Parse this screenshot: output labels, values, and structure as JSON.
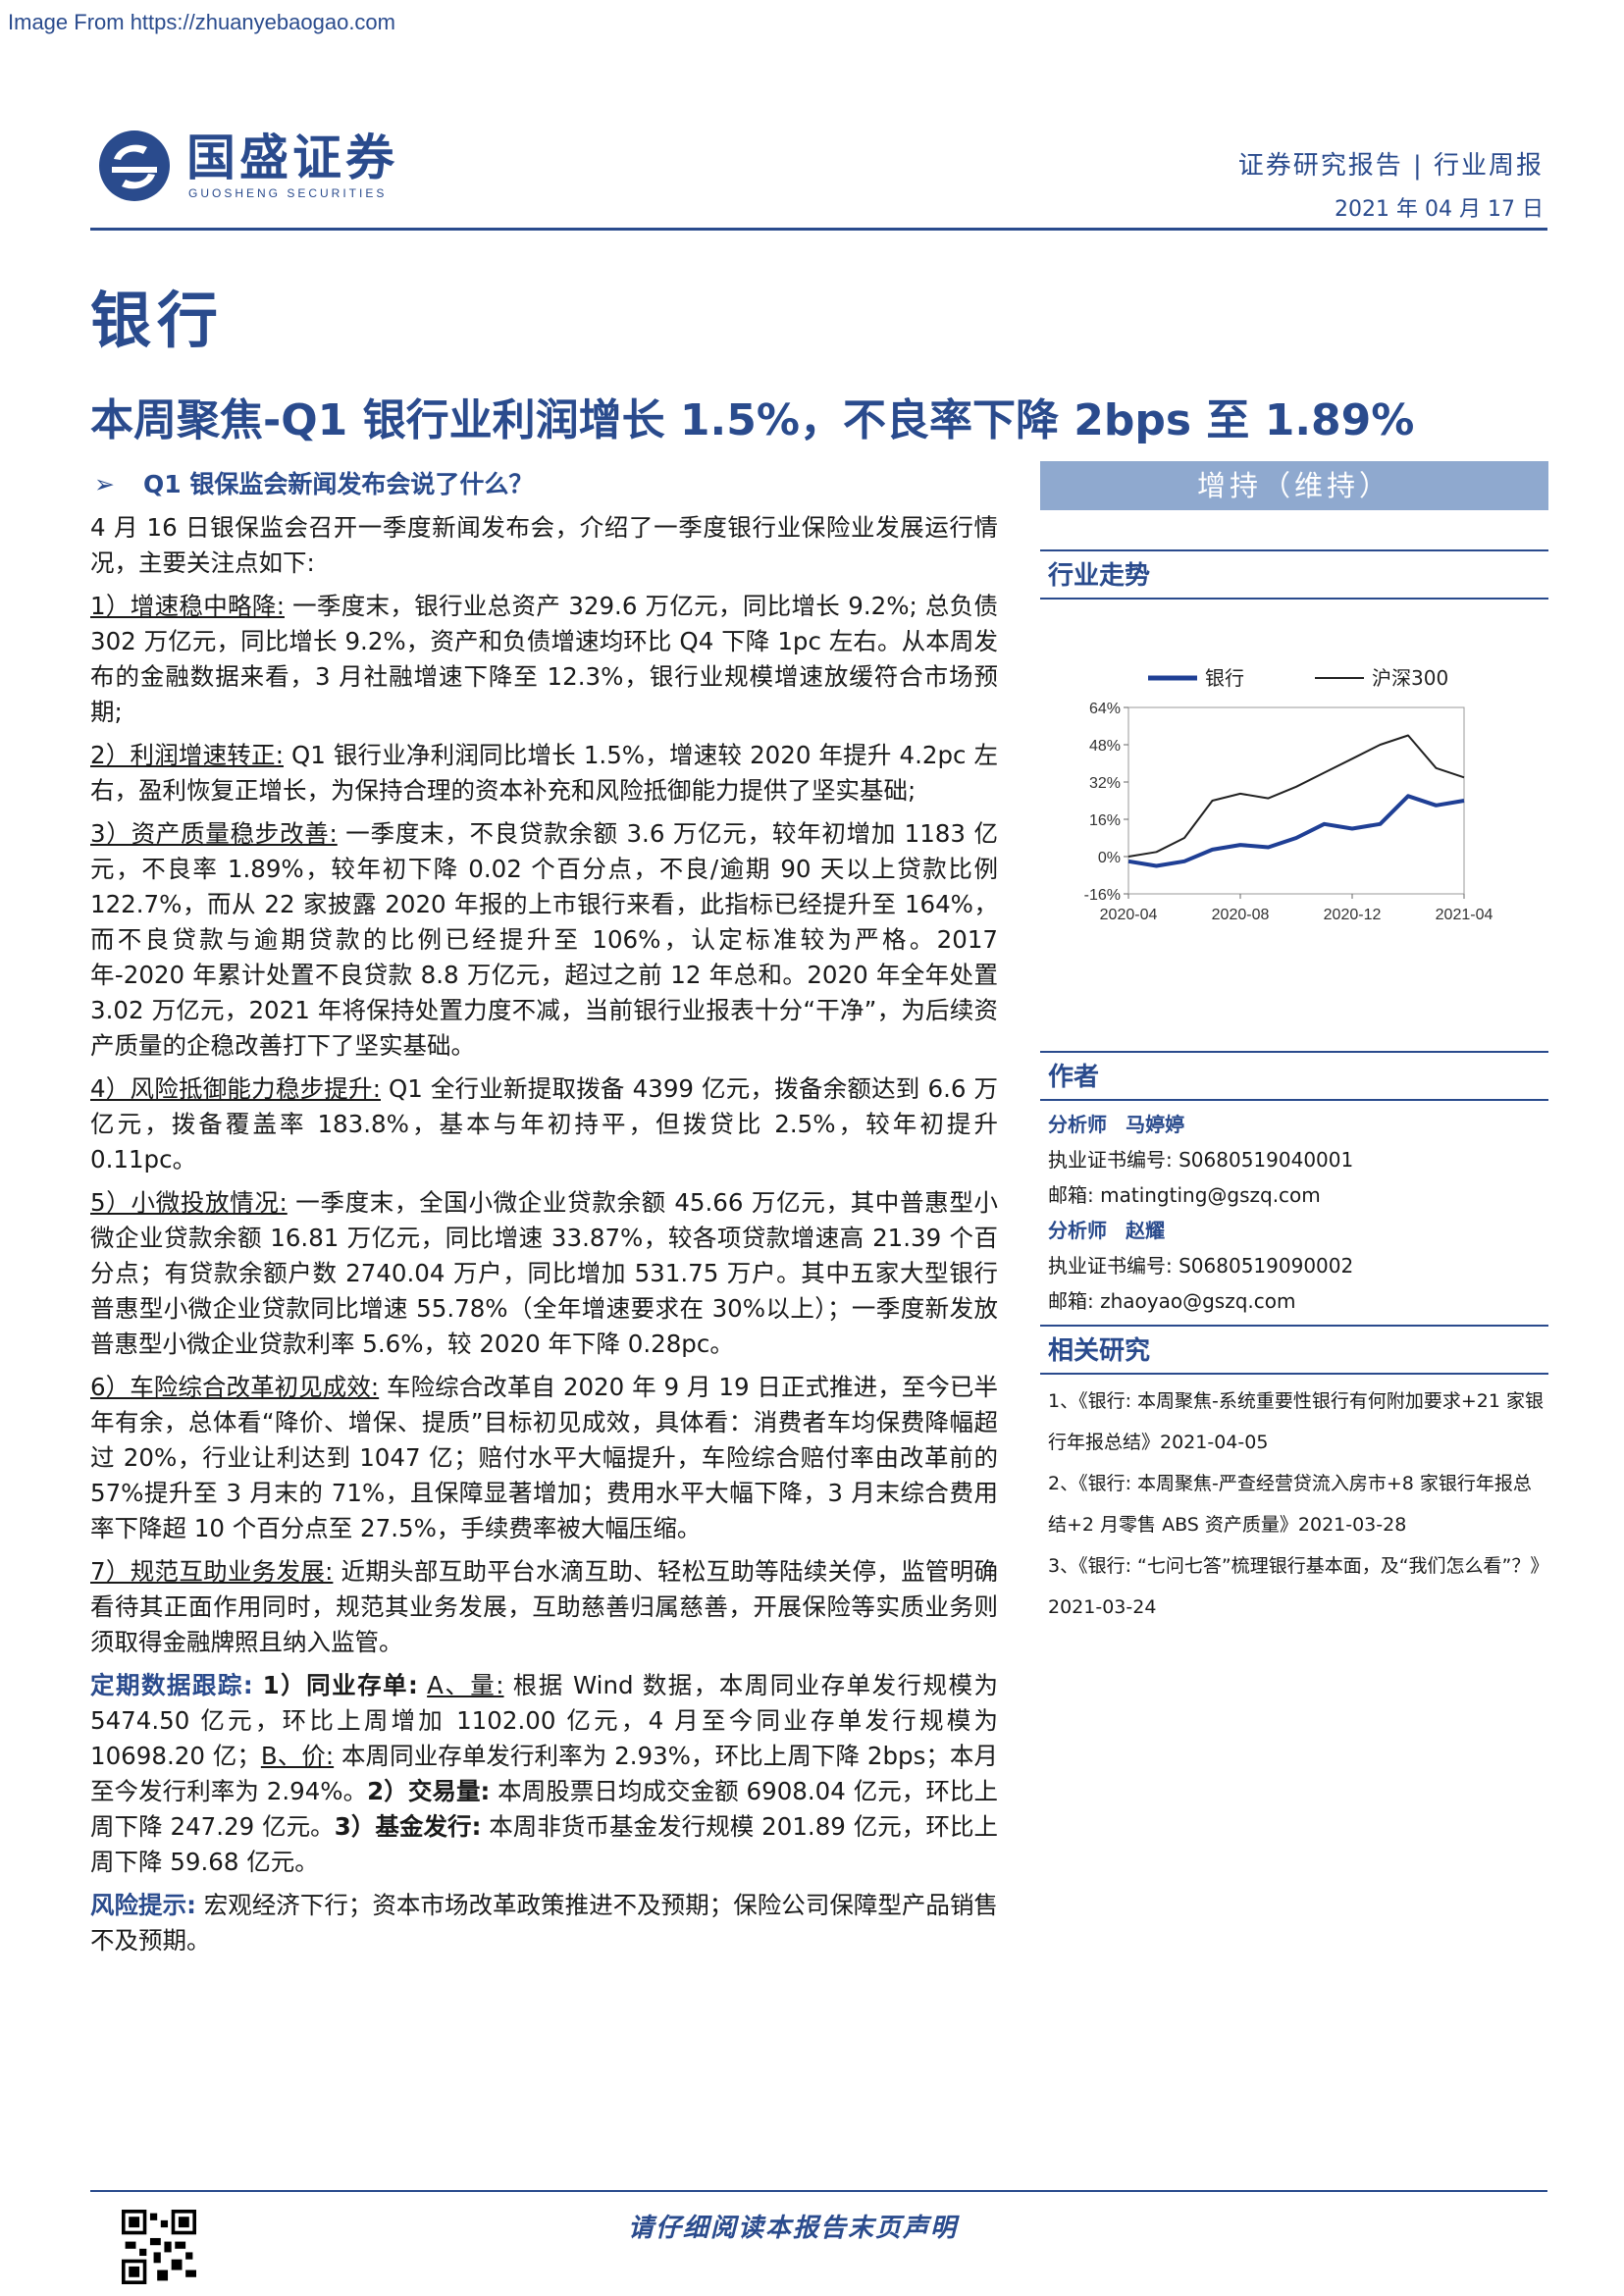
{
  "source_banner": "Image From https://zhuanyebaogao.com",
  "brand": {
    "name": "国盛证券",
    "name_en": "GUOSHENG SECURITIES",
    "color": "#2a4b8d"
  },
  "header": {
    "report_type": "证券研究报告 | 行业周报",
    "date": "2021 年 04 月 17 日"
  },
  "sector": "银行",
  "headline": "本周聚焦-Q1 银行业利润增长 1.5%，不良率下降 2bps 至 1.89%",
  "main": {
    "section_title": "Q1 银保监会新闻发布会说了什么？",
    "intro": "4 月 16 日银保监会召开一季度新闻发布会，介绍了一季度银行业保险业发展运行情况，主要关注点如下:",
    "points": [
      {
        "label": "1）增速稳中略降:",
        "text": " 一季度末，银行业总资产 329.6 万亿元，同比增长 9.2%; 总负债 302 万亿元，同比增长 9.2%，资产和负债增速均环比 Q4 下降 1pc 左右。从本周发布的金融数据来看，3 月社融增速下降至 12.3%，银行业规模增速放缓符合市场预期;"
      },
      {
        "label": "2）利润增速转正:",
        "text": " Q1 银行业净利润同比增长 1.5%，增速较 2020 年提升 4.2pc 左右，盈利恢复正增长，为保持合理的资本补充和风险抵御能力提供了坚实基础;"
      },
      {
        "label": "3）资产质量稳步改善:",
        "text": " 一季度末，不良贷款余额 3.6 万亿元，较年初增加 1183 亿元，不良率 1.89%，较年初下降 0.02 个百分点，不良/逾期 90 天以上贷款比例 122.7%，而从 22 家披露 2020 年报的上市银行来看，此指标已经提升至 164%，而不良贷款与逾期贷款的比例已经提升至 106%，认定标准较为严格。2017 年-2020 年累计处置不良贷款 8.8 万亿元，超过之前 12 年总和。2020 年全年处置 3.02 万亿元，2021 年将保持处置力度不减，当前银行业报表十分“干净”，为后续资产质量的企稳改善打下了坚实基础。"
      },
      {
        "label": "4）风险抵御能力稳步提升:",
        "text": " Q1 全行业新提取拨备 4399 亿元，拨备余额达到 6.6 万亿元，拨备覆盖率 183.8%，基本与年初持平，但拨贷比 2.5%，较年初提升 0.11pc。"
      },
      {
        "label": "5）小微投放情况:",
        "text": " 一季度末，全国小微企业贷款余额 45.66 万亿元，其中普惠型小微企业贷款余额 16.81 万亿元，同比增速 33.87%，较各项贷款增速高 21.39 个百分点；有贷款余额户数 2740.04 万户，同比增加 531.75 万户。其中五家大型银行普惠型小微企业贷款同比增速 55.78%（全年增速要求在 30%以上）；一季度新发放普惠型小微企业贷款利率 5.6%，较 2020 年下降 0.28pc。"
      },
      {
        "label": "6）车险综合改革初见成效:",
        "text": " 车险综合改革自 2020 年 9 月 19 日正式推进，至今已半年有余，总体看“降价、增保、提质”目标初见成效，具体看：消费者车均保费降幅超过 20%，行业让利达到 1047 亿；赔付水平大幅提升，车险综合赔付率由改革前的 57%提升至 3 月末的 71%，且保障显著增加；费用水平大幅下降，3 月末综合费用率下降超 10 个百分点至 27.5%，手续费率被大幅压缩。"
      },
      {
        "label": "7）规范互助业务发展:",
        "text": " 近期头部互助平台水滴互助、轻松互助等陆续关停，监管明确看待其正面作用同时，规范其业务发展，互助慈善归属慈善，开展保险等实质业务则须取得金融牌照且纳入监管。"
      }
    ],
    "tracking": {
      "label": "定期数据跟踪:",
      "p1_label": " 1）同业存单:",
      "a_label": "A、量:",
      "a_text": " 根据 Wind 数据，本周同业存单发行规模为 5474.50 亿元，环比上周增加 1102.00 亿元，4 月至今同业存单发行规模为 10698.20 亿；",
      "b_label": "B、价:",
      "b_text": " 本周同业存单发行利率为 2.93%，环比上周下降 2bps；本月至今发行利率为 2.94%。",
      "p2_label": "2）交易量:",
      "p2_text": " 本周股票日均成交金额 6908.04 亿元，环比上周下降 247.29 亿元。",
      "p3_label": "3）基金发行:",
      "p3_text": " 本周非货币基金发行规模 201.89 亿元，环比上周下降 59.68 亿元。"
    },
    "risk": {
      "label": "风险提示:",
      "text": " 宏观经济下行；资本市场改革政策推进不及预期；保险公司保障型产品销售不及预期。"
    }
  },
  "sidebar": {
    "rating": "增持（维持）",
    "trend_title": "行业走势",
    "authors_title": "作者",
    "authors": [
      {
        "role": "分析师",
        "name": "马婷婷",
        "cert_label": "执业证书编号:",
        "cert": "S0680519040001",
        "email_label": "邮箱:",
        "email": "matingting@gszq.com"
      },
      {
        "role": "分析师",
        "name": "赵耀",
        "cert_label": "执业证书编号:",
        "cert": "S0680519090002",
        "email_label": "邮箱:",
        "email": "zhaoyao@gszq.com"
      }
    ],
    "research_title": "相关研究",
    "research": [
      "1、《银行: 本周聚焦-系统重要性银行有何附加要求+21 家银行年报总结》2021-04-05",
      "2、《银行: 本周聚焦-严查经营贷流入房市+8 家银行年报总结+2 月零售 ABS 资产质量》2021-03-28",
      "3、《银行: “七问七答”梳理银行基本面，及“我们怎么看”？》2021-03-24"
    ]
  },
  "footer": {
    "note": "请仔细阅读本报告末页声明"
  },
  "chart_data": {
    "type": "line",
    "title": "",
    "xlabel": "",
    "ylabel": "",
    "ylim": [
      -16,
      64
    ],
    "y_ticks": [
      "64%",
      "48%",
      "32%",
      "16%",
      "0%",
      "-16%"
    ],
    "x_ticks": [
      "2020-04",
      "2020-08",
      "2020-12",
      "2021-04"
    ],
    "legend_position": "top",
    "series": [
      {
        "name": "银行",
        "color": "#1f3f95",
        "points": [
          [
            "2020-04",
            -2
          ],
          [
            "2020-05",
            -4
          ],
          [
            "2020-06",
            -2
          ],
          [
            "2020-07",
            3
          ],
          [
            "2020-08",
            5
          ],
          [
            "2020-09",
            4
          ],
          [
            "2020-10",
            8
          ],
          [
            "2020-11",
            14
          ],
          [
            "2020-12",
            12
          ],
          [
            "2021-01",
            14
          ],
          [
            "2021-02",
            26
          ],
          [
            "2021-03",
            22
          ],
          [
            "2021-04",
            24
          ]
        ]
      },
      {
        "name": "沪深300",
        "color": "#222222",
        "points": [
          [
            "2020-04",
            0
          ],
          [
            "2020-05",
            2
          ],
          [
            "2020-06",
            8
          ],
          [
            "2020-07",
            24
          ],
          [
            "2020-08",
            27
          ],
          [
            "2020-09",
            25
          ],
          [
            "2020-10",
            30
          ],
          [
            "2020-11",
            36
          ],
          [
            "2020-12",
            42
          ],
          [
            "2021-01",
            48
          ],
          [
            "2021-02",
            52
          ],
          [
            "2021-03",
            38
          ],
          [
            "2021-04",
            34
          ]
        ]
      }
    ]
  }
}
